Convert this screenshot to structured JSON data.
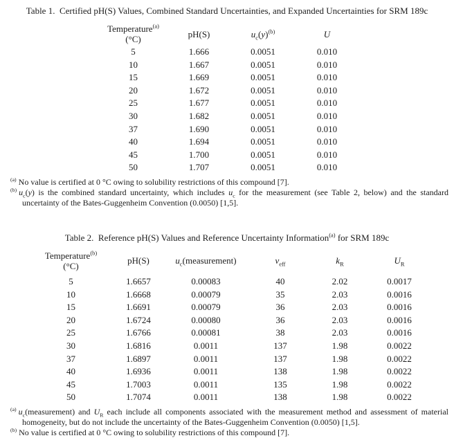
{
  "table1": {
    "title": [
      {
        "t": "Table 1.  Certified pH(S) Values, Combined Standard Uncertainties, and Expanded Uncertainties for SRM 189c"
      }
    ],
    "headers": {
      "temperature": [
        {
          "t": "Temperature"
        },
        {
          "t": "(a)",
          "s": "sup"
        }
      ],
      "temperature_unit": "(°C)",
      "ph": "pH(S)",
      "uc": [
        {
          "t": "u",
          "s": "i"
        },
        {
          "t": "c",
          "s": "sub"
        },
        {
          "t": "("
        },
        {
          "t": "y",
          "s": "i"
        },
        {
          "t": ")"
        },
        {
          "t": "(b)",
          "s": "sup"
        }
      ],
      "expanded_u": [
        {
          "t": "U",
          "s": "i"
        }
      ]
    },
    "rows": [
      [
        "5",
        "1.666",
        "0.0051",
        "0.010"
      ],
      [
        "10",
        "1.667",
        "0.0051",
        "0.010"
      ],
      [
        "15",
        "1.669",
        "0.0051",
        "0.010"
      ],
      [
        "20",
        "1.672",
        "0.0051",
        "0.010"
      ],
      [
        "25",
        "1.677",
        "0.0051",
        "0.010"
      ],
      [
        "30",
        "1.682",
        "0.0051",
        "0.010"
      ],
      [
        "37",
        "1.690",
        "0.0051",
        "0.010"
      ],
      [
        "40",
        "1.694",
        "0.0051",
        "0.010"
      ],
      [
        "45",
        "1.700",
        "0.0051",
        "0.010"
      ],
      [
        "50",
        "1.707",
        "0.0051",
        "0.010"
      ]
    ],
    "footnotes": [
      {
        "marker": "(a)",
        "segments": [
          {
            "t": "No value is certified at 0 °C owing to solubility restrictions of this compound [7]."
          }
        ]
      },
      {
        "marker": "(b)",
        "segments": [
          {
            "t": "u",
            "s": "i"
          },
          {
            "t": "c",
            "s": "sub"
          },
          {
            "t": "("
          },
          {
            "t": "y",
            "s": "i"
          },
          {
            "t": ") is the combined standard uncertainty, which includes "
          },
          {
            "t": "u",
            "s": "i"
          },
          {
            "t": "c",
            "s": "sub"
          },
          {
            "t": " for the measurement (see Table 2, below) and the standard uncertainty of the Bates-Guggenheim Convention (0.0050) [1,5]."
          }
        ]
      }
    ]
  },
  "table2": {
    "title": [
      {
        "t": "Table 2.  Reference pH(S) Values and Reference Uncertainty Information"
      },
      {
        "t": "(a)",
        "s": "sup"
      },
      {
        "t": " for SRM 189c"
      }
    ],
    "headers": {
      "temperature": [
        {
          "t": "Temperature"
        },
        {
          "t": "(b)",
          "s": "sup"
        }
      ],
      "temperature_unit": "(°C)",
      "ph": "pH(S)",
      "uc_measurement": [
        {
          "t": "u",
          "s": "i"
        },
        {
          "t": "c",
          "s": "sub"
        },
        {
          "t": "(measurement)"
        }
      ],
      "v_eff": [
        {
          "t": "v",
          "s": "i"
        },
        {
          "t": "eff",
          "s": "sub"
        }
      ],
      "k_R": [
        {
          "t": "k",
          "s": "i"
        },
        {
          "t": "R",
          "s": "sub"
        }
      ],
      "U_R": [
        {
          "t": "U",
          "s": "i"
        },
        {
          "t": "R",
          "s": "sub"
        }
      ]
    },
    "rows": [
      [
        "5",
        "1.6657",
        "0.00083",
        "40",
        "2.02",
        "0.0017"
      ],
      [
        "10",
        "1.6668",
        "0.00079",
        "35",
        "2.03",
        "0.0016"
      ],
      [
        "15",
        "1.6691",
        "0.00079",
        "36",
        "2.03",
        "0.0016"
      ],
      [
        "20",
        "1.6724",
        "0.00080",
        "36",
        "2.03",
        "0.0016"
      ],
      [
        "25",
        "1.6766",
        "0.00081",
        "38",
        "2.03",
        "0.0016"
      ],
      [
        "30",
        "1.6816",
        "0.0011",
        "137",
        "1.98",
        "0.0022"
      ],
      [
        "37",
        "1.6897",
        "0.0011",
        "137",
        "1.98",
        "0.0022"
      ],
      [
        "40",
        "1.6936",
        "0.0011",
        "138",
        "1.98",
        "0.0022"
      ],
      [
        "45",
        "1.7003",
        "0.0011",
        "135",
        "1.98",
        "0.0022"
      ],
      [
        "50",
        "1.7074",
        "0.0011",
        "138",
        "1.98",
        "0.0022"
      ]
    ],
    "footnotes": [
      {
        "marker": "(a)",
        "segments": [
          {
            "t": "u",
            "s": "i"
          },
          {
            "t": "c",
            "s": "sub"
          },
          {
            "t": "(measurement) and "
          },
          {
            "t": "U",
            "s": "i"
          },
          {
            "t": "R",
            "s": "sub"
          },
          {
            "t": " each include all components associated with the measurement method and assessment of material homogeneity, but do not include the uncertainty of the Bates-Guggenheim Convention (0.0050) [1,5]."
          }
        ]
      },
      {
        "marker": "(b)",
        "segments": [
          {
            "t": "No value is certified at 0 °C owing to solubility restrictions of this compound [7]."
          }
        ]
      }
    ]
  }
}
